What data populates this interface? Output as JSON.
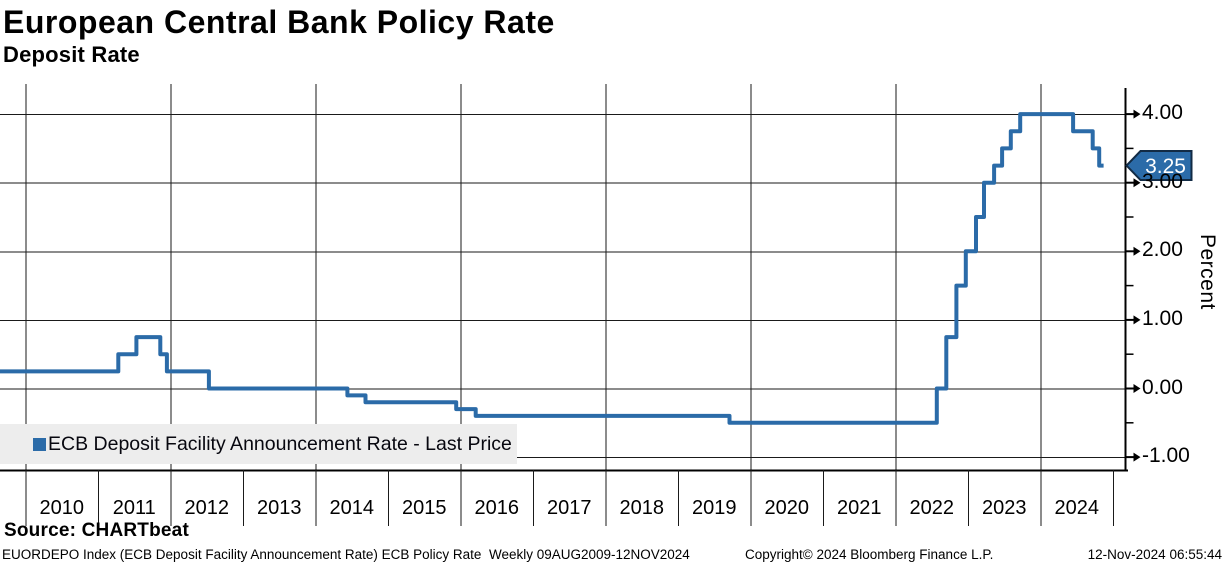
{
  "header": {
    "title": "European Central Bank Policy Rate",
    "subtitle": "Deposit Rate"
  },
  "legend": {
    "label": "ECB Deposit Facility Announcement Rate - Last Price",
    "marker_color": "#2b6ba8"
  },
  "source": {
    "label": "Source: CHARTbeat"
  },
  "footer": {
    "left": "EUORDEPO Index (ECB Deposit Facility Announcement Rate) ECB Policy Rate  Weekly 09AUG2009-12NOV2024",
    "center": "Copyright© 2024 Bloomberg Finance L.P.",
    "right": "12-Nov-2024 06:55:44"
  },
  "chart_data": {
    "type": "line",
    "title": "European Central Bank Policy Rate",
    "subtitle": "Deposit Rate",
    "step_interpolation": true,
    "grid": true,
    "legend_position": "bottom-left",
    "series": [
      {
        "name": "ECB Deposit Facility Announcement Rate - Last Price",
        "color": "#2b6ba8",
        "points": [
          {
            "date": "2009-08-09",
            "x": 2009.6,
            "value": 0.25
          },
          {
            "date": "2011-04-13",
            "x": 2011.28,
            "value": 0.5
          },
          {
            "date": "2011-07-13",
            "x": 2011.53,
            "value": 0.75
          },
          {
            "date": "2011-11-09",
            "x": 2011.86,
            "value": 0.5
          },
          {
            "date": "2011-12-14",
            "x": 2011.95,
            "value": 0.25
          },
          {
            "date": "2012-07-11",
            "x": 2012.53,
            "value": 0.0
          },
          {
            "date": "2014-06-11",
            "x": 2014.44,
            "value": -0.1
          },
          {
            "date": "2014-09-10",
            "x": 2014.69,
            "value": -0.2
          },
          {
            "date": "2015-12-09",
            "x": 2015.94,
            "value": -0.3
          },
          {
            "date": "2016-03-16",
            "x": 2016.21,
            "value": -0.4
          },
          {
            "date": "2019-09-18",
            "x": 2019.71,
            "value": -0.5
          },
          {
            "date": "2022-07-27",
            "x": 2022.57,
            "value": 0.0
          },
          {
            "date": "2022-09-14",
            "x": 2022.7,
            "value": 0.75
          },
          {
            "date": "2022-11-02",
            "x": 2022.84,
            "value": 1.5
          },
          {
            "date": "2022-12-21",
            "x": 2022.97,
            "value": 2.0
          },
          {
            "date": "2023-02-08",
            "x": 2023.11,
            "value": 2.5
          },
          {
            "date": "2023-03-22",
            "x": 2023.22,
            "value": 3.0
          },
          {
            "date": "2023-05-10",
            "x": 2023.36,
            "value": 3.25
          },
          {
            "date": "2023-06-21",
            "x": 2023.47,
            "value": 3.5
          },
          {
            "date": "2023-08-02",
            "x": 2023.59,
            "value": 3.75
          },
          {
            "date": "2023-09-20",
            "x": 2023.72,
            "value": 4.0
          },
          {
            "date": "2024-06-12",
            "x": 2024.45,
            "value": 3.75
          },
          {
            "date": "2024-09-18",
            "x": 2024.72,
            "value": 3.5
          },
          {
            "date": "2024-10-23",
            "x": 2024.81,
            "value": 3.25
          },
          {
            "date": "2024-11-12",
            "x": 2024.87,
            "value": 3.25
          }
        ]
      }
    ],
    "last_price": {
      "label": "3.25",
      "value": 3.25,
      "badge_fill": "#2b6ba8",
      "badge_border": "#122b45",
      "text_color": "#ffffff"
    },
    "x_axis": {
      "start": 2009.6,
      "end": 2024.87,
      "year_labels": [
        "2010",
        "2011",
        "2012",
        "2013",
        "2014",
        "2015",
        "2016",
        "2017",
        "2018",
        "2019",
        "2020",
        "2021",
        "2022",
        "2023",
        "2024"
      ],
      "gridline_years": [
        2010,
        2012,
        2014,
        2016,
        2018,
        2020,
        2022,
        2024
      ]
    },
    "y_axis": {
      "title": "Percent",
      "side": "right",
      "tick_labels": [
        "4.00",
        "3.00",
        "2.00",
        "1.00",
        "0.00",
        "-1.00"
      ],
      "tick_values": [
        4,
        3,
        2,
        1,
        0,
        -1
      ],
      "minor_tick_values": [
        3.5,
        2.5,
        1.5,
        0.5,
        -0.5
      ],
      "ylim": [
        -1.19,
        4.44
      ]
    }
  }
}
